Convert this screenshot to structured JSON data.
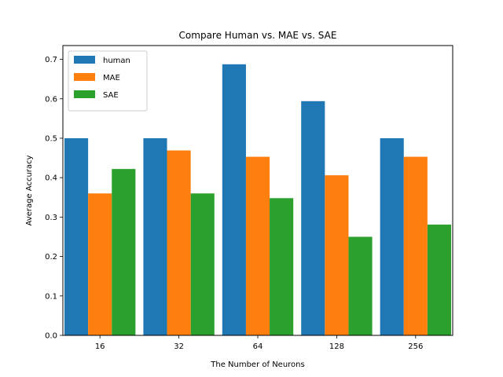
{
  "chart_data": {
    "type": "bar",
    "title": "Compare Human vs. MAE vs. SAE",
    "xlabel": "The Number of Neurons",
    "ylabel": "Average Accuracy",
    "categories": [
      "16",
      "32",
      "64",
      "128",
      "256"
    ],
    "series": [
      {
        "name": "human",
        "color": "#1f77b4",
        "values": [
          0.5,
          0.5,
          0.6875,
          0.594,
          0.5
        ]
      },
      {
        "name": "MAE",
        "color": "#ff7f0e",
        "values": [
          0.36,
          0.469,
          0.453,
          0.406,
          0.453
        ]
      },
      {
        "name": "SAE",
        "color": "#2ca02c",
        "values": [
          0.422,
          0.36,
          0.348,
          0.25,
          0.281
        ]
      }
    ],
    "ylim": [
      0,
      0.735
    ],
    "yticks": [
      "0.0",
      "0.1",
      "0.2",
      "0.3",
      "0.4",
      "0.5",
      "0.6",
      "0.7"
    ],
    "legend": "top-left",
    "grid": false
  }
}
